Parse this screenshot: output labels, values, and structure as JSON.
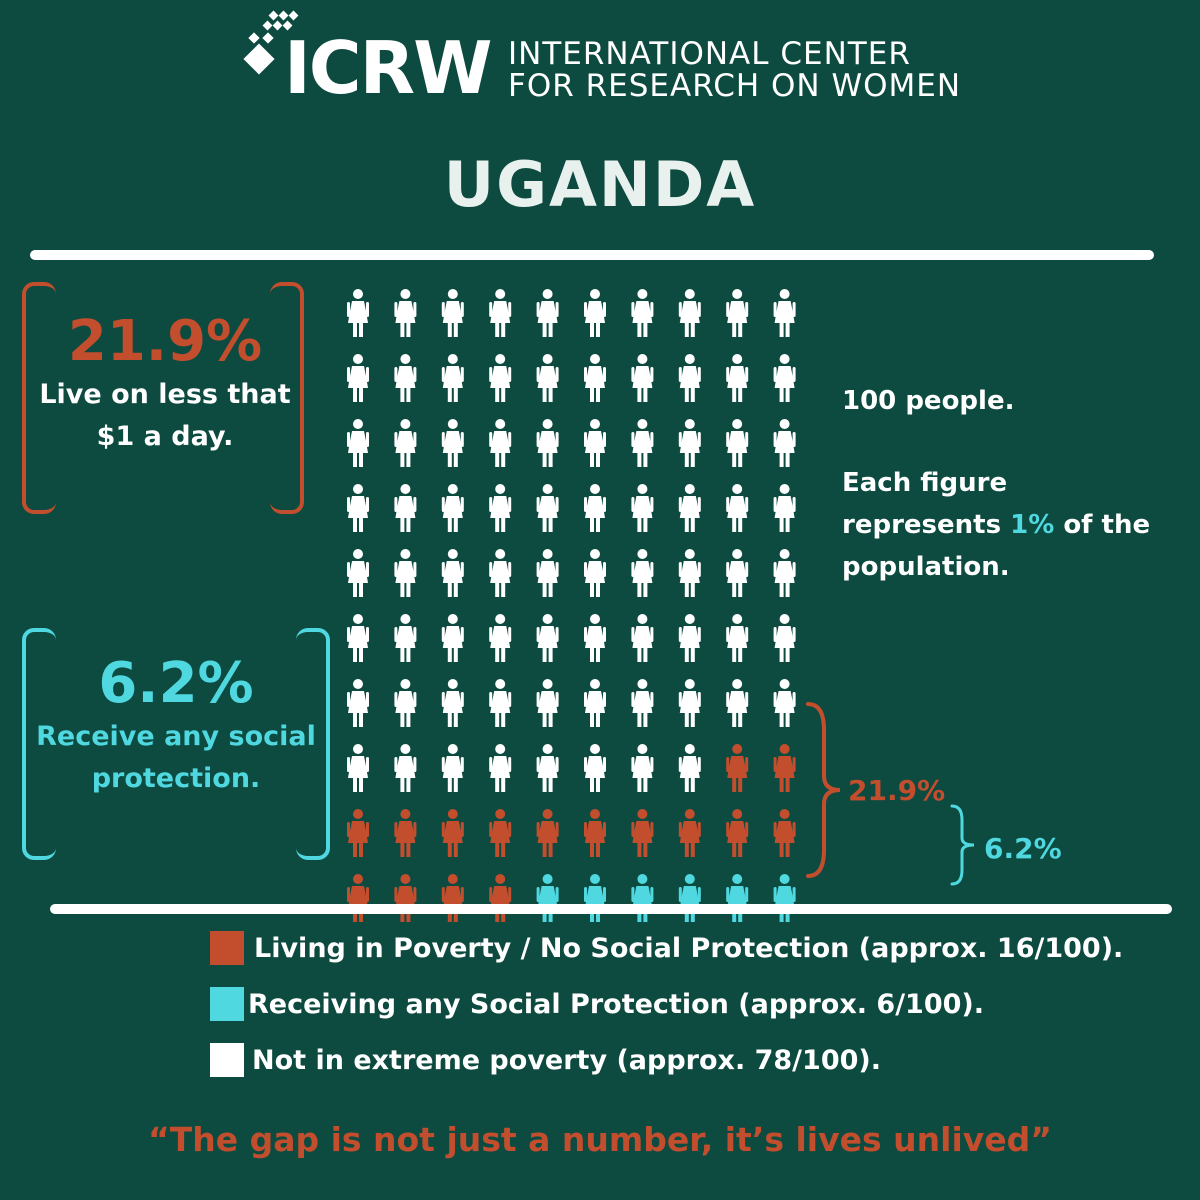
{
  "logo": {
    "wordmark": "ICRW",
    "tagline_line1": "INTERNATIONAL CENTER",
    "tagline_line2": "FOR RESEARCH ON WOMEN"
  },
  "country": "UGANDA",
  "stat_poverty": {
    "value": "21.9%",
    "line1": "Live on less that",
    "line2": "$1 a day."
  },
  "stat_protection": {
    "value": "6.2%",
    "line1": "Receive any social",
    "line2": "protection."
  },
  "note": {
    "line1": "100 people.",
    "line2": "Each figure",
    "line3_pre": "represents ",
    "line3_accent": "1%",
    "line3_post": " of the",
    "line4": "population."
  },
  "brace_labels": {
    "poverty": "21.9%",
    "protection": "6.2%"
  },
  "legend": [
    {
      "label": "Living in Poverty / No Social Protection (approx. 16/100).",
      "color": "#c24e2e"
    },
    {
      "label": "Receiving any Social Protection (approx. 6/100).",
      "color": "#4fd8e0"
    },
    {
      "label": "Not in extreme poverty (approx. 78/100).",
      "color": "#ffffff"
    }
  ],
  "quote": "“The gap is not just a number, it’s lives unlived”",
  "colors": {
    "background": "#0d4a40",
    "poverty": "#c24e2e",
    "protection": "#4fd8e0",
    "other": "#ffffff"
  },
  "chart_data": {
    "type": "pictogram",
    "total": 100,
    "unit_value_percent": 1,
    "grid": {
      "columns": 10,
      "rows": 10
    },
    "categories": [
      "Not in extreme poverty",
      "Living in Poverty / No Social Protection",
      "Receiving any Social Protection"
    ],
    "counts": [
      78,
      16,
      6
    ],
    "cells": [
      [
        "w",
        "w",
        "w",
        "w",
        "w",
        "w",
        "w",
        "w",
        "w",
        "w"
      ],
      [
        "w",
        "w",
        "w",
        "w",
        "w",
        "w",
        "w",
        "w",
        "w",
        "w"
      ],
      [
        "w",
        "w",
        "w",
        "w",
        "w",
        "w",
        "w",
        "w",
        "w",
        "w"
      ],
      [
        "w",
        "w",
        "w",
        "w",
        "w",
        "w",
        "w",
        "w",
        "w",
        "w"
      ],
      [
        "w",
        "w",
        "w",
        "w",
        "w",
        "w",
        "w",
        "w",
        "w",
        "w"
      ],
      [
        "w",
        "w",
        "w",
        "w",
        "w",
        "w",
        "w",
        "w",
        "w",
        "w"
      ],
      [
        "w",
        "w",
        "w",
        "w",
        "w",
        "w",
        "w",
        "w",
        "w",
        "w"
      ],
      [
        "w",
        "w",
        "w",
        "w",
        "w",
        "w",
        "w",
        "w",
        "o",
        "o"
      ],
      [
        "o",
        "o",
        "o",
        "o",
        "o",
        "o",
        "o",
        "o",
        "o",
        "o"
      ],
      [
        "o",
        "o",
        "o",
        "o",
        "c",
        "c",
        "c",
        "c",
        "c",
        "c"
      ]
    ]
  }
}
